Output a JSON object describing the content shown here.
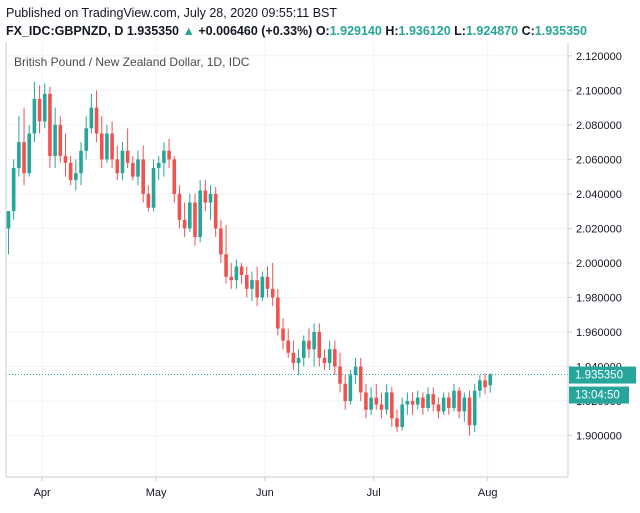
{
  "header": {
    "published": "Published on TradingView.com, July 28, 2020 09:55:11 BST",
    "symbol": "FX_IDC:GBPNZD, D",
    "last": "1.935350",
    "change": "+0.006460 (+0.33%)",
    "open_label": "O:",
    "open": "1.929140",
    "high_label": "H:",
    "high": "1.936120",
    "low_label": "L:",
    "low": "1.924870",
    "close_label": "C:",
    "close": "1.935350"
  },
  "colors": {
    "up": "#26a69a",
    "down": "#ef5350",
    "grid": "#f0f3fa",
    "axis": "#c9ccd3",
    "last_line": "#26a69a"
  },
  "chart_data": {
    "type": "candlestick",
    "title": "British Pound / New Zealand Dollar, 1D, IDC",
    "ylim": [
      1.876,
      2.128
    ],
    "yticks": [
      1.9,
      1.92,
      1.94,
      1.96,
      1.98,
      2.0,
      2.02,
      2.04,
      2.06,
      2.08,
      2.1,
      2.12
    ],
    "ytick_labels": [
      "1.900000",
      "1.920000",
      "1.940000",
      "1.960000",
      "1.980000",
      "2.000000",
      "2.020000",
      "2.040000",
      "2.060000",
      "2.080000",
      "2.100000",
      "2.120000"
    ],
    "xtick_labels": [
      "Apr",
      "May",
      "Jun",
      "Jul",
      "Aug"
    ],
    "xtick_index": [
      6.5,
      28.5,
      49.5,
      70.5,
      92.5
    ],
    "last_price": "1.935350",
    "last_value": 1.93535,
    "countdown": "13:04:50",
    "candles": [
      {
        "o": 2.02,
        "h": 2.03,
        "l": 2.005,
        "c": 2.03
      },
      {
        "o": 2.03,
        "h": 2.06,
        "l": 2.025,
        "c": 2.055
      },
      {
        "o": 2.055,
        "h": 2.085,
        "l": 2.05,
        "c": 2.07
      },
      {
        "o": 2.07,
        "h": 2.09,
        "l": 2.045,
        "c": 2.052
      },
      {
        "o": 2.052,
        "h": 2.08,
        "l": 2.05,
        "c": 2.075
      },
      {
        "o": 2.075,
        "h": 2.105,
        "l": 2.07,
        "c": 2.095
      },
      {
        "o": 2.095,
        "h": 2.103,
        "l": 2.075,
        "c": 2.082
      },
      {
        "o": 2.082,
        "h": 2.104,
        "l": 2.078,
        "c": 2.098
      },
      {
        "o": 2.098,
        "h": 2.102,
        "l": 2.055,
        "c": 2.062
      },
      {
        "o": 2.062,
        "h": 2.09,
        "l": 2.055,
        "c": 2.08
      },
      {
        "o": 2.08,
        "h": 2.085,
        "l": 2.058,
        "c": 2.062
      },
      {
        "o": 2.062,
        "h": 2.075,
        "l": 2.05,
        "c": 2.058
      },
      {
        "o": 2.058,
        "h": 2.062,
        "l": 2.045,
        "c": 2.048
      },
      {
        "o": 2.048,
        "h": 2.06,
        "l": 2.042,
        "c": 2.052
      },
      {
        "o": 2.052,
        "h": 2.07,
        "l": 2.045,
        "c": 2.065
      },
      {
        "o": 2.065,
        "h": 2.085,
        "l": 2.06,
        "c": 2.078
      },
      {
        "o": 2.078,
        "h": 2.098,
        "l": 2.075,
        "c": 2.09
      },
      {
        "o": 2.09,
        "h": 2.1,
        "l": 2.07,
        "c": 2.075
      },
      {
        "o": 2.075,
        "h": 2.085,
        "l": 2.055,
        "c": 2.06
      },
      {
        "o": 2.06,
        "h": 2.08,
        "l": 2.058,
        "c": 2.075
      },
      {
        "o": 2.075,
        "h": 2.082,
        "l": 2.055,
        "c": 2.06
      },
      {
        "o": 2.06,
        "h": 2.068,
        "l": 2.048,
        "c": 2.052
      },
      {
        "o": 2.052,
        "h": 2.07,
        "l": 2.048,
        "c": 2.065
      },
      {
        "o": 2.065,
        "h": 2.078,
        "l": 2.055,
        "c": 2.058
      },
      {
        "o": 2.058,
        "h": 2.062,
        "l": 2.048,
        "c": 2.05
      },
      {
        "o": 2.05,
        "h": 2.065,
        "l": 2.045,
        "c": 2.06
      },
      {
        "o": 2.06,
        "h": 2.068,
        "l": 2.035,
        "c": 2.04
      },
      {
        "o": 2.04,
        "h": 2.045,
        "l": 2.03,
        "c": 2.032
      },
      {
        "o": 2.032,
        "h": 2.06,
        "l": 2.03,
        "c": 2.055
      },
      {
        "o": 2.055,
        "h": 2.062,
        "l": 2.048,
        "c": 2.058
      },
      {
        "o": 2.058,
        "h": 2.07,
        "l": 2.05,
        "c": 2.065
      },
      {
        "o": 2.065,
        "h": 2.072,
        "l": 2.055,
        "c": 2.06
      },
      {
        "o": 2.06,
        "h": 2.062,
        "l": 2.035,
        "c": 2.04
      },
      {
        "o": 2.04,
        "h": 2.045,
        "l": 2.02,
        "c": 2.025
      },
      {
        "o": 2.025,
        "h": 2.035,
        "l": 2.015,
        "c": 2.02
      },
      {
        "o": 2.02,
        "h": 2.04,
        "l": 2.018,
        "c": 2.035
      },
      {
        "o": 2.035,
        "h": 2.04,
        "l": 2.01,
        "c": 2.015
      },
      {
        "o": 2.015,
        "h": 2.048,
        "l": 2.012,
        "c": 2.042
      },
      {
        "o": 2.042,
        "h": 2.048,
        "l": 2.03,
        "c": 2.035
      },
      {
        "o": 2.035,
        "h": 2.045,
        "l": 2.025,
        "c": 2.04
      },
      {
        "o": 2.04,
        "h": 2.044,
        "l": 2.015,
        "c": 2.02
      },
      {
        "o": 2.02,
        "h": 2.025,
        "l": 2.0,
        "c": 2.005
      },
      {
        "o": 2.005,
        "h": 2.022,
        "l": 1.988,
        "c": 1.992
      },
      {
        "o": 1.992,
        "h": 2.0,
        "l": 1.985,
        "c": 1.99
      },
      {
        "o": 1.99,
        "h": 2.002,
        "l": 1.985,
        "c": 1.998
      },
      {
        "o": 1.998,
        "h": 2.0,
        "l": 1.988,
        "c": 1.993
      },
      {
        "o": 1.993,
        "h": 1.998,
        "l": 1.98,
        "c": 1.985
      },
      {
        "o": 1.985,
        "h": 1.995,
        "l": 1.978,
        "c": 1.99
      },
      {
        "o": 1.99,
        "h": 1.998,
        "l": 1.975,
        "c": 1.98
      },
      {
        "o": 1.98,
        "h": 1.995,
        "l": 1.978,
        "c": 1.992
      },
      {
        "o": 1.992,
        "h": 1.998,
        "l": 1.98,
        "c": 1.985
      },
      {
        "o": 1.985,
        "h": 2.0,
        "l": 1.975,
        "c": 1.98
      },
      {
        "o": 1.98,
        "h": 1.985,
        "l": 1.958,
        "c": 1.962
      },
      {
        "o": 1.962,
        "h": 1.968,
        "l": 1.95,
        "c": 1.955
      },
      {
        "o": 1.955,
        "h": 1.962,
        "l": 1.945,
        "c": 1.948
      },
      {
        "o": 1.948,
        "h": 1.955,
        "l": 1.938,
        "c": 1.942
      },
      {
        "o": 1.942,
        "h": 1.95,
        "l": 1.935,
        "c": 1.945
      },
      {
        "o": 1.945,
        "h": 1.958,
        "l": 1.94,
        "c": 1.955
      },
      {
        "o": 1.955,
        "h": 1.962,
        "l": 1.945,
        "c": 1.95
      },
      {
        "o": 1.95,
        "h": 1.965,
        "l": 1.94,
        "c": 1.96
      },
      {
        "o": 1.96,
        "h": 1.965,
        "l": 1.94,
        "c": 1.945
      },
      {
        "o": 1.945,
        "h": 1.95,
        "l": 1.938,
        "c": 1.942
      },
      {
        "o": 1.942,
        "h": 1.955,
        "l": 1.938,
        "c": 1.95
      },
      {
        "o": 1.95,
        "h": 1.955,
        "l": 1.935,
        "c": 1.94
      },
      {
        "o": 1.94,
        "h": 1.948,
        "l": 1.925,
        "c": 1.93
      },
      {
        "o": 1.93,
        "h": 1.935,
        "l": 1.915,
        "c": 1.92
      },
      {
        "o": 1.92,
        "h": 1.938,
        "l": 1.918,
        "c": 1.935
      },
      {
        "o": 1.935,
        "h": 1.945,
        "l": 1.93,
        "c": 1.94
      },
      {
        "o": 1.94,
        "h": 1.945,
        "l": 1.92,
        "c": 1.925
      },
      {
        "o": 1.925,
        "h": 1.93,
        "l": 1.91,
        "c": 1.915
      },
      {
        "o": 1.915,
        "h": 1.928,
        "l": 1.912,
        "c": 1.922
      },
      {
        "o": 1.922,
        "h": 1.93,
        "l": 1.915,
        "c": 1.918
      },
      {
        "o": 1.918,
        "h": 1.925,
        "l": 1.91,
        "c": 1.915
      },
      {
        "o": 1.915,
        "h": 1.93,
        "l": 1.912,
        "c": 1.925
      },
      {
        "o": 1.925,
        "h": 1.928,
        "l": 1.905,
        "c": 1.91
      },
      {
        "o": 1.91,
        "h": 1.915,
        "l": 1.902,
        "c": 1.905
      },
      {
        "o": 1.905,
        "h": 1.922,
        "l": 1.903,
        "c": 1.918
      },
      {
        "o": 1.918,
        "h": 1.925,
        "l": 1.912,
        "c": 1.92
      },
      {
        "o": 1.92,
        "h": 1.925,
        "l": 1.912,
        "c": 1.918
      },
      {
        "o": 1.918,
        "h": 1.926,
        "l": 1.915,
        "c": 1.922
      },
      {
        "o": 1.922,
        "h": 1.925,
        "l": 1.912,
        "c": 1.916
      },
      {
        "o": 1.916,
        "h": 1.928,
        "l": 1.914,
        "c": 1.924
      },
      {
        "o": 1.924,
        "h": 1.928,
        "l": 1.914,
        "c": 1.918
      },
      {
        "o": 1.918,
        "h": 1.922,
        "l": 1.91,
        "c": 1.914
      },
      {
        "o": 1.914,
        "h": 1.925,
        "l": 1.912,
        "c": 1.922
      },
      {
        "o": 1.922,
        "h": 1.925,
        "l": 1.912,
        "c": 1.916
      },
      {
        "o": 1.916,
        "h": 1.93,
        "l": 1.914,
        "c": 1.926
      },
      {
        "o": 1.926,
        "h": 1.928,
        "l": 1.91,
        "c": 1.914
      },
      {
        "o": 1.914,
        "h": 1.925,
        "l": 1.908,
        "c": 1.922
      },
      {
        "o": 1.922,
        "h": 1.926,
        "l": 1.9,
        "c": 1.906
      },
      {
        "o": 1.906,
        "h": 1.93,
        "l": 1.902,
        "c": 1.926
      },
      {
        "o": 1.926,
        "h": 1.935,
        "l": 1.922,
        "c": 1.932
      },
      {
        "o": 1.932,
        "h": 1.936,
        "l": 1.924,
        "c": 1.928
      },
      {
        "o": 1.92914,
        "h": 1.93612,
        "l": 1.92487,
        "c": 1.93535
      }
    ]
  }
}
